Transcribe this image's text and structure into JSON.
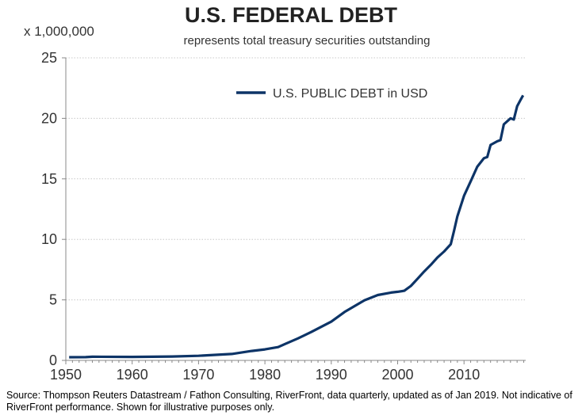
{
  "chart_data": {
    "type": "line",
    "title": "U.S. FEDERAL DEBT",
    "subtitle": "represents total treasury securities outstanding",
    "ylabel": "x 1,000,000",
    "xlabel": "",
    "xlim": [
      1950,
      2019.3
    ],
    "ylim": [
      0,
      25
    ],
    "x_ticks": [
      "1950",
      "1960",
      "1970",
      "1980",
      "1990",
      "2000",
      "2010"
    ],
    "y_ticks": [
      "0",
      "5",
      "10",
      "15",
      "20",
      "25"
    ],
    "grid": "horizontal dotted",
    "legend_position": "top-center",
    "series": [
      {
        "name": "U.S. PUBLIC DEBT in USD",
        "color": "#0d3467",
        "x": [
          1950.5,
          1953,
          1954,
          1960,
          1966,
          1970,
          1975,
          1978,
          1980,
          1982,
          1983,
          1985,
          1987,
          1990,
          1992,
          1995,
          1997,
          1999,
          2000,
          2001,
          2002,
          2003,
          2004,
          2005,
          2006,
          2007,
          2008,
          2008.5,
          2009,
          2010,
          2011,
          2012,
          2013,
          2013.5,
          2014,
          2015,
          2015.5,
          2016,
          2017,
          2017.5,
          2018,
          2018.5,
          2018.9
        ],
        "y": [
          0.26,
          0.27,
          0.3,
          0.29,
          0.32,
          0.38,
          0.53,
          0.78,
          0.91,
          1.1,
          1.35,
          1.82,
          2.35,
          3.2,
          4.0,
          4.97,
          5.4,
          5.6,
          5.67,
          5.75,
          6.15,
          6.75,
          7.35,
          7.9,
          8.5,
          9.0,
          9.6,
          10.7,
          11.9,
          13.6,
          14.8,
          16.0,
          16.7,
          16.8,
          17.8,
          18.1,
          18.2,
          19.5,
          20.0,
          19.9,
          21.0,
          21.5,
          21.9
        ]
      }
    ]
  },
  "source_note": "Source: Thompson Reuters Datastream / Fathon Consulting, RiverFront, data quarterly, updated as of Jan 2019. Not indicative of RiverFront performance. Shown for illustrative purposes only."
}
